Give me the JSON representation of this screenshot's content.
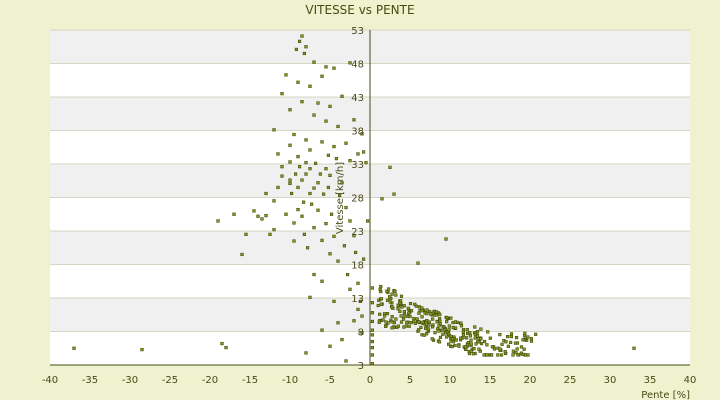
{
  "chart_data": {
    "type": "scatter",
    "title": "VITESSE vs PENTE",
    "xlabel": "Pente [%]",
    "ylabel": "Vitesse [km/h]",
    "xlim": [
      -40,
      40
    ],
    "ylim": [
      3,
      53
    ],
    "x_ticks": [
      -40,
      -35,
      -30,
      -25,
      -20,
      -15,
      -10,
      -5,
      0,
      5,
      10,
      15,
      20,
      25,
      30,
      35,
      40
    ],
    "y_ticks": [
      3,
      8,
      13,
      18,
      23,
      28,
      33,
      38,
      43,
      48,
      53
    ],
    "grid": "horizontal alternating bands",
    "legend": "none",
    "colors": {
      "background": "#eef2cf",
      "band_light": "#ffffff",
      "band_dark": "#f0f0f0",
      "grid_line": "#d6d6c6",
      "marker_fill": "#8a9a20",
      "marker_stroke": "#3e4a08",
      "axis": "#4a4a18"
    },
    "series": [
      {
        "points": [
          [
            -37,
            5.5
          ],
          [
            -28.5,
            5.3
          ],
          [
            -18.5,
            6.2
          ],
          [
            -18,
            5.6
          ],
          [
            -19,
            24.5
          ],
          [
            -17,
            25.5
          ],
          [
            -16,
            19.5
          ],
          [
            -15.5,
            22.5
          ],
          [
            -14.5,
            26
          ],
          [
            -14,
            25.2
          ],
          [
            -13.5,
            24.8
          ],
          [
            -13,
            25.3
          ],
          [
            -13,
            28.6
          ],
          [
            -12.5,
            22.5
          ],
          [
            -12,
            23.2
          ],
          [
            -12,
            27.5
          ],
          [
            -11.5,
            29.5
          ],
          [
            -11,
            31.2
          ],
          [
            -11,
            32.6
          ],
          [
            -10.5,
            25.5
          ],
          [
            -10,
            33.3
          ],
          [
            -10,
            35.8
          ],
          [
            -10,
            30.1
          ],
          [
            -10,
            30.6
          ],
          [
            -9.8,
            28.6
          ],
          [
            -9.5,
            24.2
          ],
          [
            -9.5,
            21.5
          ],
          [
            -9.3,
            31.5
          ],
          [
            -9,
            29.5
          ],
          [
            -9,
            26.2
          ],
          [
            -8.8,
            32.6
          ],
          [
            -8.5,
            30.6
          ],
          [
            -8.5,
            25.2
          ],
          [
            -8.3,
            27.3
          ],
          [
            -8.2,
            22.5
          ],
          [
            -8,
            33.2
          ],
          [
            -8,
            31.5
          ],
          [
            -7.8,
            20.5
          ],
          [
            -7.5,
            32.3
          ],
          [
            -7.5,
            28.6
          ],
          [
            -7.3,
            27
          ],
          [
            -7,
            29.4
          ],
          [
            -7,
            23.5
          ],
          [
            -6.8,
            33.1
          ],
          [
            -6.5,
            30.2
          ],
          [
            -6.5,
            26.1
          ],
          [
            -6.2,
            31.5
          ],
          [
            -6,
            21.6
          ],
          [
            -5.8,
            28.5
          ],
          [
            -5.5,
            32.3
          ],
          [
            -5.5,
            24.1
          ],
          [
            -5.2,
            29.5
          ],
          [
            -5,
            31.3
          ],
          [
            -5,
            19.6
          ],
          [
            -4.8,
            25.5
          ],
          [
            -4.5,
            22.2
          ],
          [
            -4.2,
            33.8
          ],
          [
            -4,
            18.5
          ],
          [
            -3.8,
            28.3
          ],
          [
            -3.5,
            30.2
          ],
          [
            -3.2,
            20.8
          ],
          [
            -3,
            26.5
          ],
          [
            -2.8,
            16.5
          ],
          [
            -2.5,
            24.5
          ],
          [
            -2,
            22.3
          ],
          [
            -1.8,
            19.8
          ],
          [
            -1.5,
            15.2
          ],
          [
            -1.2,
            12.5
          ],
          [
            -1,
            10.3
          ],
          [
            -0.8,
            18.8
          ],
          [
            -0.5,
            33.2
          ],
          [
            -0.3,
            24.5
          ],
          [
            -9.5,
            53.2
          ],
          [
            -8.8,
            51.3
          ],
          [
            -8.5,
            52.1
          ],
          [
            -8,
            50.5
          ],
          [
            -6.5,
            53.3
          ],
          [
            -9.2,
            50.1
          ],
          [
            -8.2,
            49.5
          ],
          [
            -7,
            48.2
          ],
          [
            -5.5,
            47.5
          ],
          [
            -10.5,
            46.3
          ],
          [
            -9,
            45.2
          ],
          [
            -7.5,
            44.6
          ],
          [
            -6,
            46.1
          ],
          [
            -4.5,
            47.3
          ],
          [
            -2.5,
            48.1
          ],
          [
            -11,
            43.5
          ],
          [
            -8.5,
            42.3
          ],
          [
            -6.5,
            42.1
          ],
          [
            -5,
            41.6
          ],
          [
            -3.5,
            43.1
          ],
          [
            -10,
            41.1
          ],
          [
            -7,
            40.3
          ],
          [
            -5.5,
            39.4
          ],
          [
            -4,
            38.6
          ],
          [
            -2,
            39.6
          ],
          [
            -1,
            37.5
          ],
          [
            -12,
            38.1
          ],
          [
            -9.5,
            37.4
          ],
          [
            -8,
            36.6
          ],
          [
            -6,
            36.3
          ],
          [
            -4.5,
            35.6
          ],
          [
            -3,
            36.1
          ],
          [
            -1.5,
            34.5
          ],
          [
            -11.5,
            34.5
          ],
          [
            -9,
            34.1
          ],
          [
            -7.5,
            35.1
          ],
          [
            -5.2,
            34.3
          ],
          [
            -2.5,
            33.5
          ],
          [
            -0.8,
            34.8
          ],
          [
            -7.5,
            13.1
          ],
          [
            -7,
            16.5
          ],
          [
            -6,
            15.5
          ],
          [
            -5,
            5.8
          ],
          [
            -4,
            9.3
          ],
          [
            -4.5,
            12.5
          ],
          [
            -3.5,
            6.8
          ],
          [
            -3,
            3.6
          ],
          [
            -8,
            4.8
          ],
          [
            -6,
            8.2
          ],
          [
            -2.5,
            14.3
          ],
          [
            -2,
            9.6
          ],
          [
            -1.5,
            11.3
          ],
          [
            -1,
            7.8
          ],
          [
            1.5,
            27.8
          ],
          [
            2.5,
            32.5
          ],
          [
            3,
            28.5
          ],
          [
            9.5,
            21.8
          ],
          [
            6,
            18.2
          ],
          [
            33,
            5.5
          ],
          [
            16,
            5.5
          ],
          [
            0.3,
            4.5
          ],
          [
            0.3,
            5.6
          ],
          [
            0.3,
            6.5
          ],
          [
            0.3,
            7.5
          ],
          [
            0.3,
            8.2
          ],
          [
            0.3,
            9.5
          ],
          [
            0.3,
            10.8
          ],
          [
            0.3,
            12.3
          ],
          [
            0.3,
            14.5
          ],
          [
            0.3,
            3.2
          ]
        ],
        "cluster": {
          "count": 290,
          "x_range": [
            0.5,
            21
          ],
          "y_range": [
            4.5,
            15.5
          ],
          "note": "dense band of points, speed falling from ~14 to ~6 km/h as the slope rises from 0 to 20 %"
        }
      }
    ]
  }
}
